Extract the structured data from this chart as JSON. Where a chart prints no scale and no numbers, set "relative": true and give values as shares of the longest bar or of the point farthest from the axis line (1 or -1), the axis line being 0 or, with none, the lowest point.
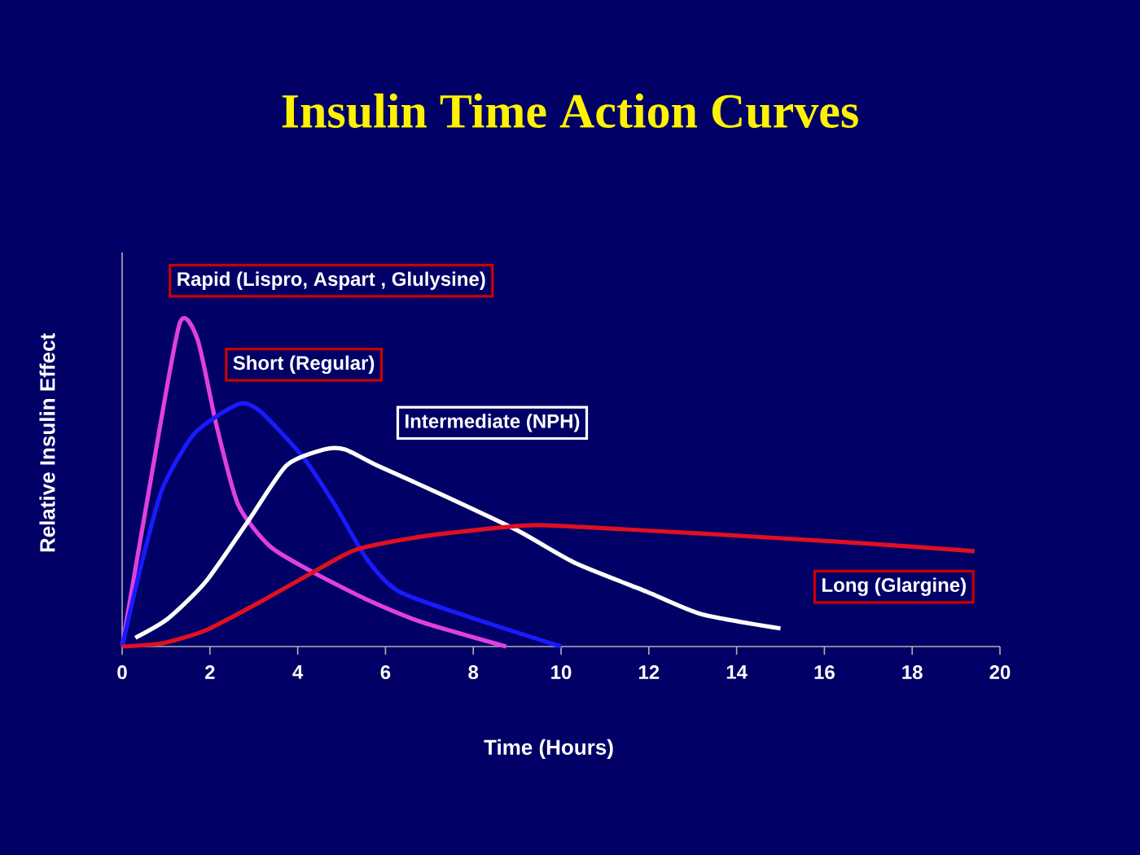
{
  "chart_data": {
    "type": "line",
    "title": "Insulin Time Action Curves",
    "xlabel": "Time (Hours)",
    "ylabel": "Relative Insulin Effect",
    "relative": true,
    "xlim": [
      0,
      20
    ],
    "xticks": [
      0,
      2,
      4,
      6,
      8,
      10,
      12,
      14,
      16,
      18,
      20
    ],
    "grid": false,
    "legend": false,
    "marker": "none",
    "line_style": "solid",
    "series": [
      {
        "name": "Rapid (Lispro, Aspart , Glulysine)",
        "color": "#e040e0",
        "x": [
          0,
          0.67,
          1.31,
          1.72,
          2.14,
          2.64,
          3.37,
          4.35,
          5.58,
          6.8,
          8.75
        ],
        "values": [
          0,
          0.53,
          1.0,
          0.95,
          0.69,
          0.44,
          0.31,
          0.23,
          0.145,
          0.077,
          0
        ]
      },
      {
        "name": "Short (Regular)",
        "color": "#1a1aff",
        "x": [
          0,
          0.43,
          0.92,
          1.65,
          2.64,
          3.13,
          4.1,
          4.84,
          5.58,
          6.31,
          8.03,
          10.0
        ],
        "values": [
          0,
          0.25,
          0.49,
          0.66,
          0.75,
          0.73,
          0.59,
          0.44,
          0.27,
          0.17,
          0.086,
          0
        ]
      },
      {
        "name": "Intermediate (NPH)",
        "color": "#ffffff",
        "x": [
          0.3,
          1.04,
          1.9,
          2.88,
          3.74,
          4.6,
          5.08,
          5.82,
          7.29,
          9.0,
          10.3,
          11.95,
          13.2,
          15.0
        ],
        "values": [
          0.027,
          0.086,
          0.2,
          0.39,
          0.56,
          0.61,
          0.61,
          0.56,
          0.47,
          0.36,
          0.26,
          0.17,
          0.1,
          0.056
        ]
      },
      {
        "name": "Long (Glargine)",
        "color": "#e01020",
        "x": [
          0,
          0.92,
          1.9,
          3.13,
          4.35,
          5.33,
          6.8,
          8.76,
          9.5,
          10.48,
          13.17,
          16.85,
          19.42
        ],
        "values": [
          0,
          0.01,
          0.05,
          0.137,
          0.23,
          0.3,
          0.34,
          0.37,
          0.376,
          0.37,
          0.35,
          0.32,
          0.295
        ]
      }
    ]
  }
}
